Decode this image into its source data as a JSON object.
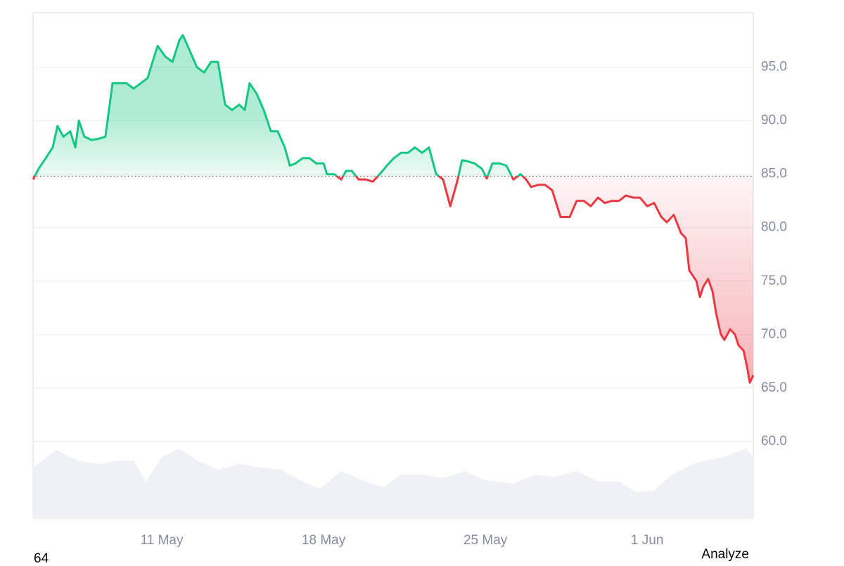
{
  "chart_data": {
    "type": "baseline-line",
    "baseline": 84.8,
    "up_color": "#16c784",
    "down_color": "#ea3943",
    "x": [
      4.43,
      4.67,
      4.98,
      5.28,
      5.49,
      5.74,
      6.04,
      6.26,
      6.41,
      6.65,
      6.96,
      7.26,
      7.56,
      7.87,
      8.17,
      8.48,
      8.78,
      9.09,
      9.39,
      9.6,
      9.82,
      10.15,
      10.46,
      10.76,
      10.91,
      11.22,
      11.52,
      11.83,
      12.13,
      12.43,
      12.74,
      13.04,
      13.35,
      13.59,
      13.8,
      14.11,
      14.41,
      14.72,
      15.02,
      15.32,
      15.54,
      15.78,
      16.09,
      16.39,
      16.69,
      17.0,
      17.15,
      17.45,
      17.76,
      17.97,
      18.22,
      18.52,
      18.82,
      19.13,
      19.43,
      19.74,
      20.04,
      20.35,
      20.65,
      20.95,
      21.26,
      21.56,
      21.87,
      22.17,
      22.48,
      22.78,
      22.99,
      23.24,
      23.54,
      23.85,
      24.06,
      24.3,
      24.61,
      24.91,
      25.21,
      25.52,
      25.76,
      25.98,
      26.28,
      26.58,
      26.89,
      27.25,
      27.65,
      27.95,
      28.26,
      28.56,
      28.87,
      29.17,
      29.47,
      29.78,
      30.08,
      30.39,
      30.69,
      31.0,
      31.3,
      31.61,
      31.85,
      32.15,
      32.46,
      32.67,
      32.82,
      33.13,
      33.28,
      33.43,
      33.64,
      33.83,
      33.98,
      34.19,
      34.34,
      34.59,
      34.8,
      34.95,
      35.17,
      35.32,
      35.44,
      35.59
    ],
    "values": [
      84.5,
      85.5,
      86.5,
      87.5,
      89.5,
      88.5,
      89,
      87.5,
      90,
      88.5,
      88.2,
      88.3,
      88.5,
      93.5,
      93.5,
      93.5,
      93,
      93.5,
      94,
      95.5,
      97,
      96,
      95.5,
      97.5,
      98,
      96.5,
      95,
      94.5,
      95.5,
      95.5,
      91.5,
      91,
      91.5,
      91,
      93.5,
      92.5,
      91,
      89,
      89,
      87.5,
      85.8,
      86,
      86.5,
      86.5,
      86,
      86,
      85,
      85,
      84.5,
      85.3,
      85.3,
      84.5,
      84.5,
      84.3,
      85,
      85.8,
      86.5,
      87,
      87,
      87.5,
      87,
      87.5,
      85,
      84.5,
      82,
      84.3,
      86.3,
      86.2,
      86,
      85.5,
      84.6,
      86,
      86,
      85.8,
      84.5,
      85,
      84.5,
      83.8,
      84,
      84,
      83.5,
      81,
      81,
      82.5,
      82.5,
      82,
      82.8,
      82.3,
      82.5,
      82.5,
      83,
      82.8,
      82.8,
      82,
      82.3,
      81,
      80.5,
      81.2,
      79.5,
      79,
      76,
      75,
      73.5,
      74.5,
      75.2,
      74,
      72,
      70,
      69.5,
      70.5,
      70,
      69,
      68.5,
      67,
      65.5,
      66.2
    ],
    "volume": {
      "color": "#eef1f5",
      "ylim": [
        0,
        100
      ],
      "x": [
        4.43,
        5.43,
        6.35,
        7.26,
        8.17,
        8.78,
        9.3,
        10.0,
        10.76,
        11.52,
        12.43,
        13.35,
        14.26,
        15.17,
        16.09,
        16.85,
        17.76,
        18.82,
        19.59,
        20.35,
        21.26,
        22.17,
        23.09,
        24.0,
        25.21,
        26.13,
        27.04,
        27.95,
        28.87,
        29.78,
        30.54,
        31.3,
        32.06,
        33.13,
        34.34,
        35.26,
        35.59
      ],
      "values": [
        72,
        97,
        82,
        77,
        82,
        82,
        52,
        87,
        99,
        82,
        69,
        77,
        72,
        69,
        52,
        42,
        67,
        52,
        44,
        62,
        62,
        57,
        67,
        54,
        49,
        62,
        59,
        67,
        52,
        52,
        37,
        39,
        62,
        79,
        87,
        99,
        87
      ]
    },
    "xlim": [
      4.43,
      35.59
    ],
    "xticks": [
      {
        "value": 10,
        "label": "11 May"
      },
      {
        "value": 17,
        "label": "18 May"
      },
      {
        "value": 24,
        "label": "25 May"
      },
      {
        "value": 31,
        "label": "1 Jun"
      }
    ],
    "ylim": [
      52.83,
      100.1
    ],
    "yticks": [
      {
        "value": 60,
        "label": "60.0"
      },
      {
        "value": 65,
        "label": "65.0"
      },
      {
        "value": 70,
        "label": "70.0"
      },
      {
        "value": 75,
        "label": "75.0"
      },
      {
        "value": 80,
        "label": "80.0"
      },
      {
        "value": 85,
        "label": "85.0"
      },
      {
        "value": 90,
        "label": "90.0"
      },
      {
        "value": 95,
        "label": "95.0"
      }
    ],
    "grid": true,
    "footer_left": "64",
    "footer_right": "Analyze"
  }
}
